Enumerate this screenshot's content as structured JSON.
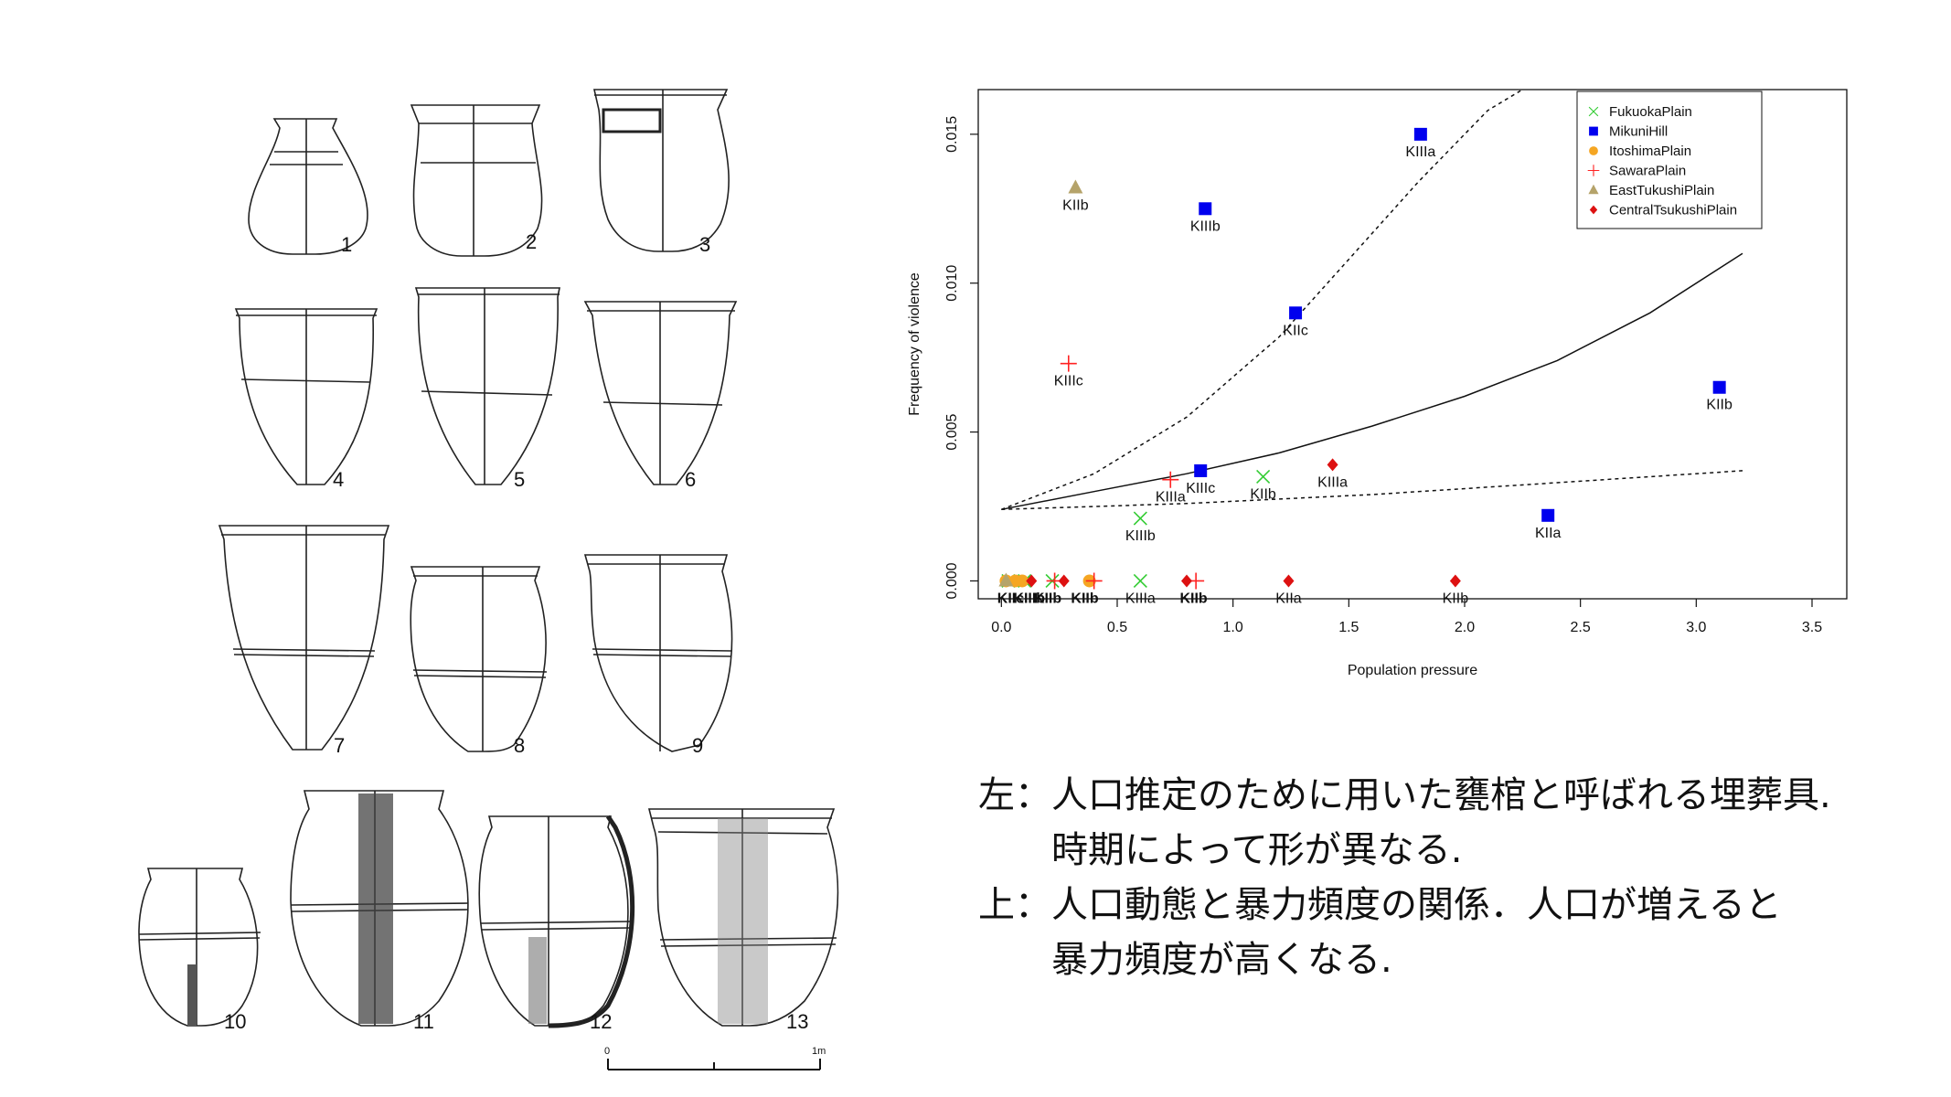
{
  "figure": {
    "jar_numbers": [
      "1",
      "2",
      "3",
      "4",
      "5",
      "6",
      "7",
      "8",
      "9",
      "10",
      "11",
      "12",
      "13"
    ],
    "scale_bar": {
      "start_label": "0",
      "end_label": "1m"
    }
  },
  "chart_data": {
    "type": "scatter",
    "title": "",
    "xlabel": "Population pressure",
    "ylabel": "Frequency of violence",
    "xlim": [
      -0.1,
      3.65
    ],
    "ylim": [
      -0.0006,
      0.0165
    ],
    "xticks": [
      "0.0",
      "0.5",
      "1.0",
      "1.5",
      "2.0",
      "2.5",
      "3.0",
      "3.5"
    ],
    "yticks": [
      "0.000",
      "0.005",
      "0.010",
      "0.015"
    ],
    "grid": false,
    "legend_position": "top-right",
    "series": [
      {
        "name": "FukuokaPlain",
        "marker": "cross",
        "color": "#33cc33",
        "points": [
          {
            "x": 0.6,
            "y": 0.0021,
            "label": "KIIIb"
          },
          {
            "x": 1.13,
            "y": 0.0035,
            "label": "KIIb"
          },
          {
            "x": 0.6,
            "y": 0.0,
            "label": "KIIIa"
          },
          {
            "x": 0.03,
            "y": 0.0,
            "label": ""
          },
          {
            "x": 0.1,
            "y": 0.0,
            "label": ""
          },
          {
            "x": 0.22,
            "y": 0.0,
            "label": ""
          }
        ]
      },
      {
        "name": "MikuniHill",
        "marker": "square",
        "color": "#0000ee",
        "points": [
          {
            "x": 1.81,
            "y": 0.015,
            "label": "KIIIa"
          },
          {
            "x": 0.88,
            "y": 0.0125,
            "label": "KIIIb"
          },
          {
            "x": 1.27,
            "y": 0.009,
            "label": "KIIc"
          },
          {
            "x": 3.1,
            "y": 0.0065,
            "label": "KIIb"
          },
          {
            "x": 0.86,
            "y": 0.0037,
            "label": "KIIIc"
          },
          {
            "x": 2.36,
            "y": 0.0022,
            "label": "KIIa"
          }
        ]
      },
      {
        "name": "ItoshimaPlain",
        "marker": "circle",
        "color": "#f5a623",
        "points": [
          {
            "x": 0.02,
            "y": 0.0,
            "label": ""
          },
          {
            "x": 0.06,
            "y": 0.0,
            "label": ""
          },
          {
            "x": 0.09,
            "y": 0.0,
            "label": ""
          },
          {
            "x": 0.38,
            "y": 0.0,
            "label": ""
          }
        ]
      },
      {
        "name": "SawaraPlain",
        "marker": "plus",
        "color": "#ff2222",
        "points": [
          {
            "x": 0.29,
            "y": 0.0073,
            "label": "KIIIc"
          },
          {
            "x": 0.73,
            "y": 0.0034,
            "label": "KIIIa"
          },
          {
            "x": 0.84,
            "y": 0.0,
            "label": ""
          },
          {
            "x": 0.23,
            "y": 0.0,
            "label": ""
          },
          {
            "x": 0.4,
            "y": 0.0,
            "label": ""
          }
        ]
      },
      {
        "name": "EastTukushiPlain",
        "marker": "triangle",
        "color": "#b5a36a",
        "points": [
          {
            "x": 0.32,
            "y": 0.0132,
            "label": "KIIb"
          },
          {
            "x": 0.02,
            "y": 0.0,
            "label": ""
          }
        ]
      },
      {
        "name": "CentralTsukushiPlain",
        "marker": "diamond",
        "color": "#dd1111",
        "points": [
          {
            "x": 1.43,
            "y": 0.0039,
            "label": "KIIIa"
          },
          {
            "x": 1.24,
            "y": 0.0,
            "label": "KIIa"
          },
          {
            "x": 1.96,
            "y": 0.0,
            "label": "KIIb"
          },
          {
            "x": 0.13,
            "y": 0.0,
            "label": ""
          },
          {
            "x": 0.27,
            "y": 0.0,
            "label": ""
          },
          {
            "x": 0.8,
            "y": 0.0,
            "label": ""
          }
        ]
      }
    ],
    "overlapping_labels": [
      {
        "x": 0.04,
        "text": "KIIc"
      },
      {
        "x": 0.12,
        "text": "KIIIb"
      },
      {
        "x": 0.2,
        "text": "KIIb"
      },
      {
        "x": 0.36,
        "text": "KIIb"
      },
      {
        "x": 0.83,
        "text": "KIIb"
      }
    ],
    "curves": [
      {
        "name": "",
        "style": "solid",
        "x": [
          0.0,
          0.4,
          0.8,
          1.2,
          1.6,
          2.0,
          2.4,
          2.8,
          3.2
        ],
        "y": [
          0.0024,
          0.003,
          0.0036,
          0.0043,
          0.0052,
          0.0062,
          0.0074,
          0.009,
          0.011
        ]
      },
      {
        "name": "",
        "style": "dashed",
        "x": [
          0.0,
          0.4,
          0.8,
          1.2,
          1.5,
          1.8,
          2.1,
          2.25
        ],
        "y": [
          0.0024,
          0.0036,
          0.0055,
          0.0082,
          0.0108,
          0.0134,
          0.0158,
          0.0166
        ]
      },
      {
        "name": "",
        "style": "dashed",
        "x": [
          0.0,
          0.8,
          1.6,
          2.4,
          3.2
        ],
        "y": [
          0.0024,
          0.0026,
          0.0029,
          0.0033,
          0.0037
        ]
      }
    ]
  },
  "caption": {
    "left_lead": "左：",
    "left_line1": "人口推定のために用いた甕棺と呼ばれる埋葬具.",
    "left_line2": "時期によって形が異なる.",
    "top_lead": "上：",
    "top_line1": "人口動態と暴力頻度の関係．人口が増えると",
    "top_line2": "暴力頻度が高くなる."
  }
}
